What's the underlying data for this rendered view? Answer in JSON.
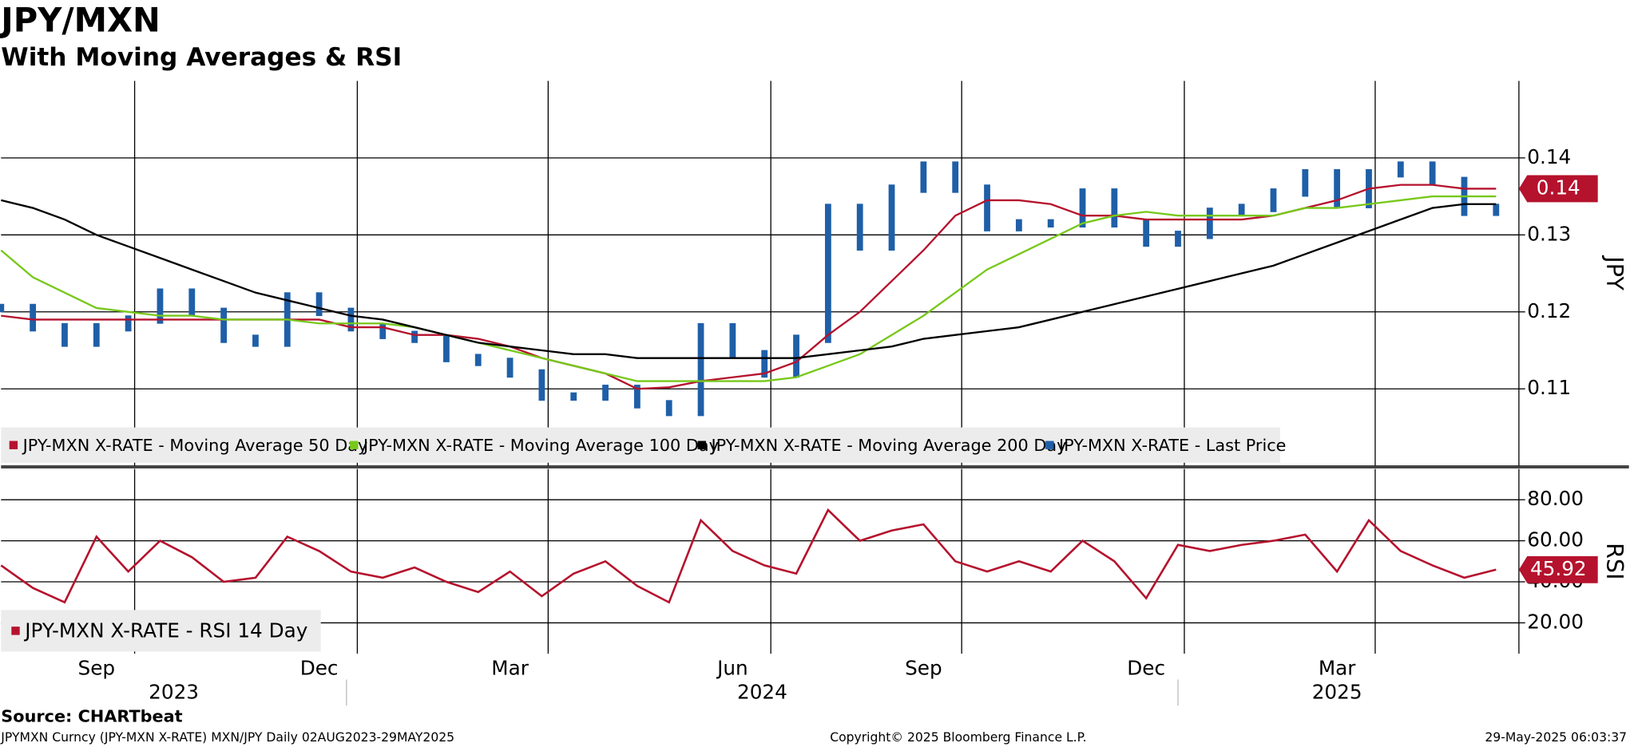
{
  "chart_data": [
    {
      "type": "line",
      "title": "JPY/MXN",
      "subtitle": "With Moving Averages & RSI",
      "y_label": "JPY",
      "categories": [
        null,
        null,
        null,
        "Sep",
        null,
        null,
        null,
        null,
        null,
        null,
        "Dec",
        null,
        null,
        null,
        null,
        null,
        "Mar",
        null,
        null,
        null,
        null,
        null,
        null,
        "Jun",
        null,
        null,
        null,
        null,
        null,
        "Sep",
        null,
        null,
        null,
        null,
        null,
        null,
        "Dec",
        null,
        null,
        null,
        null,
        null,
        "Mar",
        null,
        null,
        null,
        null,
        null
      ],
      "years": [
        "2023",
        "2024",
        "2025"
      ],
      "ylim": [
        0.1,
        0.15
      ],
      "yticks": [
        0.11,
        0.12,
        0.13,
        0.14
      ],
      "grid": true,
      "series": [
        {
          "name": "JPY-MXN X-RATE - Moving Average 50 Day",
          "color": "#b5122d",
          "last_label": "0.14",
          "values": [
            0.1195,
            0.119,
            0.119,
            0.119,
            0.119,
            0.119,
            0.119,
            0.119,
            0.119,
            0.119,
            0.119,
            0.118,
            0.118,
            0.117,
            0.117,
            0.1165,
            0.1155,
            0.114,
            0.113,
            0.112,
            0.11,
            0.1102,
            0.111,
            0.1115,
            0.112,
            0.1135,
            0.117,
            0.12,
            0.124,
            0.128,
            0.1325,
            0.1345,
            0.1345,
            0.134,
            0.1325,
            0.1325,
            0.132,
            0.132,
            0.132,
            0.132,
            0.1325,
            0.1335,
            0.1345,
            0.136,
            0.1365,
            0.1365,
            0.136,
            0.136
          ]
        },
        {
          "name": "JPY-MXN X-RATE - Moving Average 100 Day",
          "color": "#77c81a",
          "values": [
            0.128,
            0.1245,
            0.1225,
            0.1205,
            0.12,
            0.1195,
            0.1195,
            0.119,
            0.119,
            0.119,
            0.1185,
            0.1185,
            0.1185,
            0.118,
            0.117,
            0.116,
            0.115,
            0.114,
            0.113,
            0.112,
            0.111,
            0.111,
            0.111,
            0.111,
            0.111,
            0.1115,
            0.113,
            0.1145,
            0.117,
            0.1195,
            0.1225,
            0.1255,
            0.1275,
            0.1295,
            0.1315,
            0.1325,
            0.133,
            0.1325,
            0.1325,
            0.1325,
            0.1325,
            0.1335,
            0.1335,
            0.134,
            0.1345,
            0.135,
            0.135,
            0.135
          ]
        },
        {
          "name": "JPY-MXN X-RATE - Moving Average 200 Day",
          "color": "#000000",
          "values": [
            0.1345,
            0.1335,
            0.132,
            0.13,
            0.1285,
            0.127,
            0.1255,
            0.124,
            0.1225,
            0.1215,
            0.1205,
            0.1195,
            0.119,
            0.118,
            0.117,
            0.116,
            0.1155,
            0.115,
            0.1145,
            0.1145,
            0.114,
            0.114,
            0.114,
            0.114,
            0.114,
            0.114,
            0.1145,
            0.115,
            0.1155,
            0.1165,
            0.117,
            0.1175,
            0.118,
            0.119,
            0.12,
            0.121,
            0.122,
            0.123,
            0.124,
            0.125,
            0.126,
            0.1275,
            0.129,
            0.1305,
            0.132,
            0.1335,
            0.134,
            0.134
          ]
        },
        {
          "name": "JPY-MXN X-RATE - Last Price",
          "color": "#1f5fa8",
          "style": "bars",
          "values": [
            0.1205,
            0.118,
            0.116,
            0.118,
            0.119,
            0.1225,
            0.12,
            0.1165,
            0.116,
            0.122,
            0.12,
            0.118,
            0.117,
            0.1165,
            0.114,
            0.1135,
            0.112,
            0.109,
            0.109,
            0.11,
            0.108,
            0.107,
            0.118,
            0.1145,
            0.112,
            0.1165,
            0.1335,
            0.1285,
            0.136,
            0.139,
            0.136,
            0.131,
            0.1315,
            0.1315,
            0.1355,
            0.1315,
            0.129,
            0.13,
            0.133,
            0.1335,
            0.1355,
            0.138,
            0.134,
            0.138,
            0.139,
            0.137,
            0.133,
            0.1335
          ]
        }
      ]
    },
    {
      "type": "line",
      "y_label": "RSI",
      "ylim": [
        5,
        95
      ],
      "yticks": [
        {
          "value": 20,
          "label": "20.00"
        },
        {
          "value": 40,
          "label": "40.00"
        },
        {
          "value": 60,
          "label": "60.00"
        },
        {
          "value": 80,
          "label": "80.00"
        }
      ],
      "grid": true,
      "series": [
        {
          "name": "JPY-MXN X-RATE - RSI 14 Day",
          "color": "#b5122d",
          "values": [
            48,
            37,
            30,
            62,
            45,
            60,
            52,
            40,
            42,
            62,
            55,
            45,
            42,
            47,
            40,
            35,
            45,
            33,
            44,
            50,
            38,
            30,
            70,
            55,
            48,
            44,
            75,
            60,
            65,
            68,
            50,
            45,
            50,
            45,
            60,
            50,
            32,
            58,
            55,
            58,
            60,
            63,
            45,
            70,
            55,
            48,
            42,
            45.92
          ]
        }
      ]
    }
  ],
  "footer": {
    "source": "Source: CHARTbeat",
    "info": "JPYMXN Curncy (JPY-MXN X-RATE) MXN/JPY  Daily 02AUG2023-29MAY2025",
    "copyright": "Copyright© 2025 Bloomberg Finance L.P.",
    "timestamp": "29-May-2025 06:03:37"
  }
}
